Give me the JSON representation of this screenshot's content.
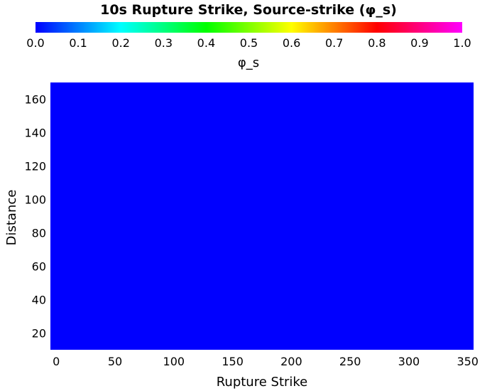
{
  "chart_data": {
    "type": "heatmap",
    "title": "10s Rupture Strike, Source-strike (φ_s)",
    "xlabel": "Rupture Strike",
    "ylabel": "Distance",
    "xlim": [
      -5,
      355
    ],
    "ylim": [
      10,
      170
    ],
    "xticks": [
      0,
      50,
      100,
      150,
      200,
      250,
      300,
      350
    ],
    "yticks": [
      20,
      40,
      60,
      80,
      100,
      120,
      140,
      160
    ],
    "colorbar": {
      "label": "φ_s",
      "min": 0.0,
      "max": 1.0,
      "ticks": [
        "0.0",
        "0.1",
        "0.2",
        "0.3",
        "0.4",
        "0.5",
        "0.6",
        "0.7",
        "0.8",
        "0.9",
        "1.0"
      ],
      "colors": [
        "#0000ff",
        "#00ffff",
        "#00ff00",
        "#ffff00",
        "#ff0000",
        "#ff00ff"
      ]
    },
    "value_everywhere": 0.0,
    "fill_color": "#0000ff",
    "grid": false,
    "legend": "none"
  }
}
